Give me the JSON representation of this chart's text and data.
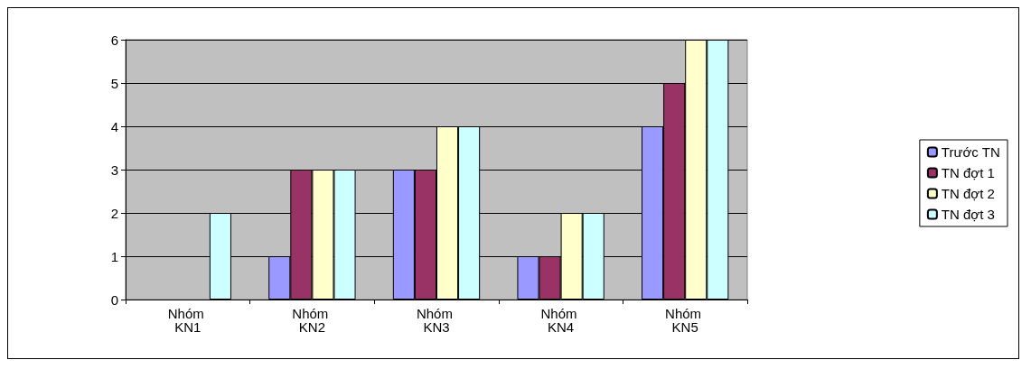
{
  "chart_data": {
    "type": "bar",
    "categories": [
      "Nhóm KN1",
      "Nhóm KN2",
      "Nhóm KN3",
      "Nhóm KN4",
      "Nhóm KN5"
    ],
    "series": [
      {
        "name": "Trước TN",
        "color": "#9999ff",
        "values": [
          0,
          1,
          3,
          1,
          4
        ]
      },
      {
        "name": "TN đợt 1",
        "color": "#993366",
        "values": [
          0,
          3,
          3,
          1,
          5
        ]
      },
      {
        "name": "TN đợt 2",
        "color": "#ffffcc",
        "values": [
          0,
          3,
          4,
          2,
          6
        ]
      },
      {
        "name": "TN đợt 3",
        "color": "#ccffff",
        "values": [
          2,
          3,
          4,
          2,
          6
        ]
      }
    ],
    "ylim": [
      0,
      6
    ],
    "yticks": [
      0,
      1,
      2,
      3,
      4,
      5,
      6
    ],
    "grid": "y",
    "legend": "right"
  }
}
